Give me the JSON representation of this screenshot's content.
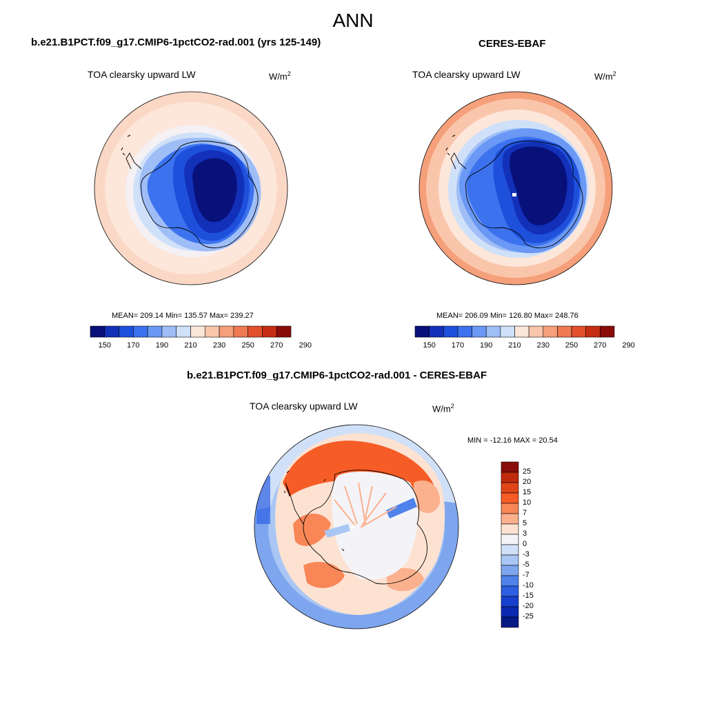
{
  "page": {
    "title": "ANN"
  },
  "panels": [
    {
      "id": "model",
      "case_title": "b.e21.B1PCT.f09_g17.CMIP6-1pctCO2-rad.001 (yrs 125-149)",
      "variable": "TOA clearsky upward LW",
      "units_base": "W/m",
      "units_exp": "2",
      "stats_text": "MEAN= 209.14  Min= 135.57  Max= 239.27",
      "stats": {
        "mean": 209.14,
        "min": 135.57,
        "max": 239.27
      }
    },
    {
      "id": "obs",
      "case_title": "CERES-EBAF",
      "variable": "TOA clearsky upward LW",
      "units_base": "W/m",
      "units_exp": "2",
      "stats_text": "MEAN= 206.09  Min= 126.80  Max= 248.76",
      "stats": {
        "mean": 206.09,
        "min": 126.8,
        "max": 248.76
      }
    },
    {
      "id": "diff",
      "case_title": "b.e21.B1PCT.f09_g17.CMIP6-1pctCO2-rad.001 - CERES-EBAF",
      "variable": "TOA clearsky upward LW",
      "units_base": "W/m",
      "units_exp": "2",
      "stats_text": "MIN = -12.16 MAX =  20.54",
      "stats": {
        "min": -12.16,
        "max": 20.54
      }
    }
  ],
  "colorbar_abs": {
    "colors": [
      "#08107a",
      "#1230b8",
      "#1e50dc",
      "#3c72ee",
      "#6a98f4",
      "#9fbef7",
      "#cfe0f9",
      "#fbe6da",
      "#fac6ab",
      "#f5a07a",
      "#ef7950",
      "#e2502c",
      "#c62d12",
      "#8a0c0a"
    ],
    "labels": [
      "150",
      "170",
      "190",
      "210",
      "230",
      "250",
      "270",
      "290"
    ]
  },
  "colorbar_diff": {
    "colors": [
      "#8a0c0a",
      "#bf2a0a",
      "#e04418",
      "#f65c26",
      "#f98656",
      "#fbb08e",
      "#fde2d2",
      "#f4f4f8",
      "#cfe0f8",
      "#a9c6f4",
      "#7ea6ee",
      "#4f82ea",
      "#2d5fe2",
      "#1740cf",
      "#0a28b0",
      "#061a86"
    ],
    "labels": [
      "25",
      "20",
      "15",
      "10",
      "7",
      "5",
      "3",
      "0",
      "-3",
      "-5",
      "-7",
      "-10",
      "-15",
      "-20",
      "-25"
    ]
  }
}
